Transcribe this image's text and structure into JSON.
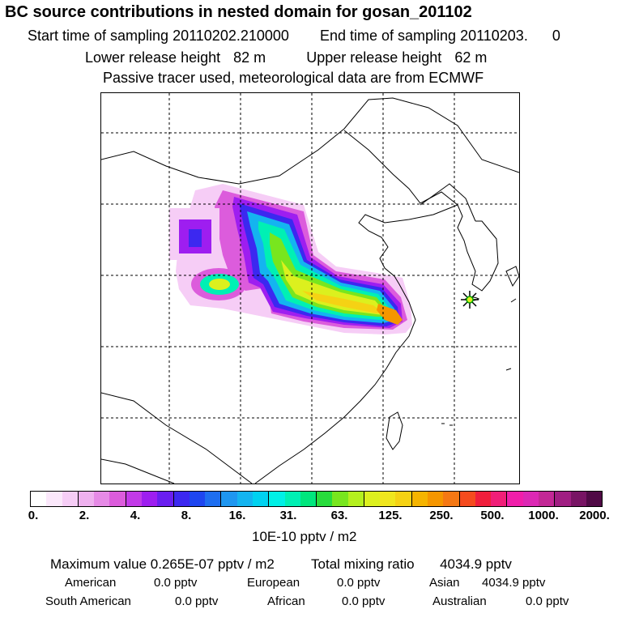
{
  "header": {
    "title": "BC  source contributions in nested domain for gosan_201102",
    "start_label": "Start time of sampling",
    "start_value": "20110202.210000",
    "end_label": "End time of sampling",
    "end_value": "20110203.",
    "end_suffix": "0",
    "lower_label": "Lower release height",
    "lower_value": "82 m",
    "upper_label": "Upper release height",
    "upper_value": "62 m",
    "note": "Passive tracer used, meteorological data are from ECMWF"
  },
  "colorbar": {
    "colors": [
      "#ffffff",
      "#fbe8fb",
      "#f6cdf6",
      "#efb1ef",
      "#e68ae6",
      "#dc5cdc",
      "#c23ae8",
      "#9e1ef0",
      "#6a1ef0",
      "#3c28f0",
      "#1e46f0",
      "#1e6ef0",
      "#1e96f0",
      "#14b4f0",
      "#00d2f0",
      "#00f0e6",
      "#00f0b4",
      "#00e67d",
      "#28dc3c",
      "#78e61e",
      "#b4f01e",
      "#dcf01e",
      "#f0e61e",
      "#f5d214",
      "#f5b400",
      "#f59600",
      "#f57814",
      "#f54b1e",
      "#f01e3c",
      "#f01e78",
      "#f01eaa",
      "#dc28b4",
      "#c32896",
      "#a01e82",
      "#781464",
      "#500a46"
    ],
    "ticks": [
      "0.",
      "2.",
      "4.",
      "8.",
      "16.",
      "31.",
      "63.",
      "125.",
      "250.",
      "500.",
      "1000.",
      "2000."
    ],
    "units": "10E-10 pptv / m2"
  },
  "stats": {
    "max_label": "Maximum value",
    "max_value": "0.265E-07 pptv / m2",
    "total_label": "Total mixing ratio",
    "total_value": "4034.9 pptv",
    "regions": [
      {
        "name": "American",
        "value": "0.0 pptv"
      },
      {
        "name": "European",
        "value": "0.0 pptv"
      },
      {
        "name": "Asian",
        "value": "4034.9 pptv"
      },
      {
        "name": "South American",
        "value": "0.0 pptv"
      },
      {
        "name": "African",
        "value": "0.0 pptv"
      },
      {
        "name": "Australian",
        "value": "0.0 pptv"
      }
    ]
  },
  "map": {
    "receptor_marker": "star-marker",
    "plume_colors": [
      "#f6cdf6",
      "#dc5cdc",
      "#9e1ef0",
      "#3c28f0",
      "#14b4f0",
      "#00f0b4",
      "#78e61e",
      "#dcf01e",
      "#f5d214",
      "#f59600"
    ]
  }
}
